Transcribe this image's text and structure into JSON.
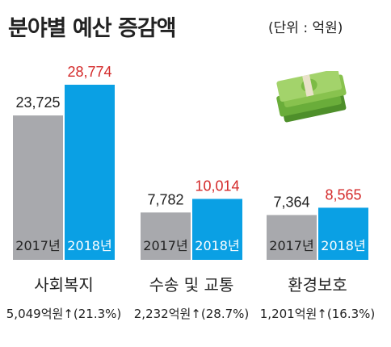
{
  "title": "분야별 예산 증감액",
  "unit_label": "(단위 : 억원)",
  "colors": {
    "y2017": "#a8a9ad",
    "y2018": "#0aa0e4",
    "value2017": "#222222",
    "value2018": "#d42a2a",
    "bar_text": "#222222",
    "bar_text_2018": "#ffffff"
  },
  "icon": "money-stack-icon",
  "chart_data": {
    "type": "bar",
    "categories": [
      "사회복지",
      "수송 및 교통",
      "환경보호"
    ],
    "series": [
      {
        "name": "2017년",
        "values": [
          23725,
          7782,
          7364
        ],
        "labels": [
          "23,725",
          "7,782",
          "7,364"
        ]
      },
      {
        "name": "2018년",
        "values": [
          28774,
          10014,
          8565
        ],
        "labels": [
          "28,774",
          "10,014",
          "8,565"
        ]
      }
    ],
    "changes": [
      "5,049억원↑(21.3%)",
      "2,232억원↑(28.7%)",
      "1,201억원↑(16.3%)"
    ],
    "ylim": [
      0,
      28774
    ],
    "grid": false
  }
}
